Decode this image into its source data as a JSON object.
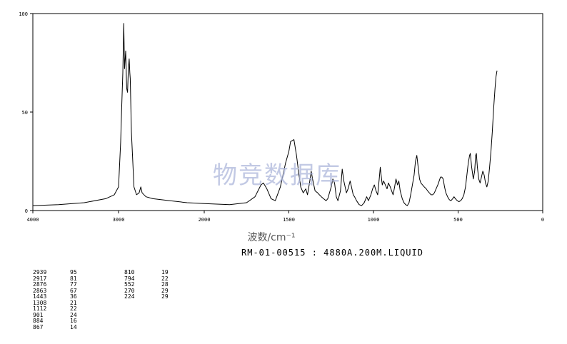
{
  "chart_data": {
    "type": "line",
    "title": "",
    "xlabel": "波数/cm⁻¹",
    "ylabel": "",
    "x_reversed": true,
    "xlim": [
      4000,
      0
    ],
    "ylim": [
      0,
      100
    ],
    "x_ticks": [
      4000,
      3000,
      2000,
      1500,
      1000,
      500,
      0
    ],
    "y_ticks": [
      0,
      50,
      100
    ],
    "grid": false,
    "series": [
      {
        "points": [
          [
            4000,
            2.5
          ],
          [
            3700,
            3
          ],
          [
            3400,
            4
          ],
          [
            3150,
            6
          ],
          [
            3050,
            8
          ],
          [
            3000,
            12
          ],
          [
            2975,
            35
          ],
          [
            2965,
            50
          ],
          [
            2950,
            70
          ],
          [
            2939,
            95
          ],
          [
            2930,
            72
          ],
          [
            2917,
            81
          ],
          [
            2905,
            62
          ],
          [
            2895,
            60
          ],
          [
            2885,
            72
          ],
          [
            2876,
            77
          ],
          [
            2868,
            70
          ],
          [
            2863,
            67
          ],
          [
            2850,
            40
          ],
          [
            2820,
            12
          ],
          [
            2790,
            8
          ],
          [
            2760,
            9
          ],
          [
            2740,
            12
          ],
          [
            2725,
            9
          ],
          [
            2680,
            7
          ],
          [
            2600,
            6
          ],
          [
            2400,
            5
          ],
          [
            2200,
            4
          ],
          [
            2000,
            3.5
          ],
          [
            1850,
            3
          ],
          [
            1750,
            4
          ],
          [
            1700,
            7
          ],
          [
            1665,
            13
          ],
          [
            1650,
            14
          ],
          [
            1630,
            11
          ],
          [
            1605,
            6
          ],
          [
            1580,
            5
          ],
          [
            1550,
            12
          ],
          [
            1520,
            24
          ],
          [
            1500,
            30
          ],
          [
            1490,
            35
          ],
          [
            1470,
            36
          ],
          [
            1455,
            28
          ],
          [
            1443,
            20
          ],
          [
            1430,
            12
          ],
          [
            1415,
            9
          ],
          [
            1400,
            11
          ],
          [
            1390,
            8
          ],
          [
            1378,
            14
          ],
          [
            1368,
            20
          ],
          [
            1360,
            16
          ],
          [
            1345,
            10
          ],
          [
            1330,
            9
          ],
          [
            1320,
            8
          ],
          [
            1308,
            7
          ],
          [
            1295,
            6
          ],
          [
            1280,
            5
          ],
          [
            1270,
            6
          ],
          [
            1250,
            12
          ],
          [
            1240,
            16
          ],
          [
            1230,
            14
          ],
          [
            1220,
            7
          ],
          [
            1210,
            5
          ],
          [
            1195,
            10
          ],
          [
            1185,
            21
          ],
          [
            1175,
            15
          ],
          [
            1160,
            9
          ],
          [
            1150,
            11
          ],
          [
            1138,
            15
          ],
          [
            1130,
            12
          ],
          [
            1120,
            8
          ],
          [
            1112,
            7
          ],
          [
            1100,
            5
          ],
          [
            1085,
            3
          ],
          [
            1070,
            2.5
          ],
          [
            1055,
            4
          ],
          [
            1040,
            7
          ],
          [
            1030,
            5
          ],
          [
            1015,
            8
          ],
          [
            1005,
            11
          ],
          [
            995,
            13
          ],
          [
            985,
            10
          ],
          [
            975,
            8
          ],
          [
            965,
            17
          ],
          [
            960,
            22
          ],
          [
            955,
            18
          ],
          [
            948,
            13
          ],
          [
            940,
            15
          ],
          [
            930,
            13
          ],
          [
            920,
            11
          ],
          [
            912,
            14
          ],
          [
            901,
            12
          ],
          [
            893,
            10
          ],
          [
            884,
            8
          ],
          [
            875,
            12
          ],
          [
            867,
            16
          ],
          [
            858,
            13
          ],
          [
            850,
            15
          ],
          [
            842,
            10
          ],
          [
            830,
            6
          ],
          [
            820,
            4
          ],
          [
            810,
            3
          ],
          [
            800,
            2.5
          ],
          [
            790,
            4
          ],
          [
            780,
            8
          ],
          [
            770,
            13
          ],
          [
            760,
            18
          ],
          [
            752,
            25
          ],
          [
            744,
            28
          ],
          [
            736,
            22
          ],
          [
            728,
            16
          ],
          [
            720,
            14
          ],
          [
            710,
            13
          ],
          [
            700,
            12
          ],
          [
            688,
            11
          ],
          [
            680,
            10
          ],
          [
            670,
            9
          ],
          [
            660,
            8
          ],
          [
            650,
            8
          ],
          [
            640,
            9
          ],
          [
            630,
            11
          ],
          [
            620,
            13
          ],
          [
            612,
            15
          ],
          [
            604,
            17
          ],
          [
            596,
            17
          ],
          [
            588,
            16
          ],
          [
            580,
            12
          ],
          [
            572,
            9
          ],
          [
            562,
            7
          ],
          [
            552,
            5.5
          ],
          [
            542,
            5
          ],
          [
            532,
            6
          ],
          [
            524,
            7
          ],
          [
            516,
            6
          ],
          [
            505,
            5
          ],
          [
            495,
            4.5
          ],
          [
            485,
            5
          ],
          [
            476,
            6
          ],
          [
            466,
            8
          ],
          [
            456,
            12
          ],
          [
            448,
            18
          ],
          [
            440,
            24
          ],
          [
            432,
            28
          ],
          [
            428,
            29
          ],
          [
            420,
            22
          ],
          [
            410,
            16
          ],
          [
            402,
            20
          ],
          [
            396,
            28
          ],
          [
            392,
            29
          ],
          [
            386,
            22
          ],
          [
            378,
            16
          ],
          [
            370,
            14
          ],
          [
            362,
            17
          ],
          [
            354,
            20
          ],
          [
            346,
            18
          ],
          [
            338,
            14
          ],
          [
            330,
            12
          ],
          [
            322,
            15
          ],
          [
            314,
            22
          ],
          [
            306,
            30
          ],
          [
            298,
            40
          ],
          [
            290,
            52
          ],
          [
            282,
            62
          ],
          [
            276,
            68
          ],
          [
            270,
            71
          ]
        ]
      }
    ],
    "peak_table": [
      {
        "wavenumber": 2939,
        "intensity": 95
      },
      {
        "wavenumber": 2917,
        "intensity": 81
      },
      {
        "wavenumber": 2876,
        "intensity": 77
      },
      {
        "wavenumber": 2863,
        "intensity": 67
      },
      {
        "wavenumber": 1443,
        "intensity": 36
      },
      {
        "wavenumber": 1308,
        "intensity": 21
      },
      {
        "wavenumber": 1112,
        "intensity": 22
      },
      {
        "wavenumber": 901,
        "intensity": 24
      },
      {
        "wavenumber": 884,
        "intensity": 16
      },
      {
        "wavenumber": 867,
        "intensity": 14
      },
      {
        "wavenumber": 810,
        "intensity": 19
      },
      {
        "wavenumber": 794,
        "intensity": 22
      },
      {
        "wavenumber": 552,
        "intensity": 28
      },
      {
        "wavenumber": 270,
        "intensity": 29
      },
      {
        "wavenumber": 224,
        "intensity": 29
      }
    ]
  },
  "spectrum_code": "RM-01-00515 : 4880A.200M.LIQUID",
  "watermark": "物竞数据库",
  "colors": {
    "line": "#000000",
    "axis": "#000000",
    "watermark": "#aeb8dc"
  }
}
